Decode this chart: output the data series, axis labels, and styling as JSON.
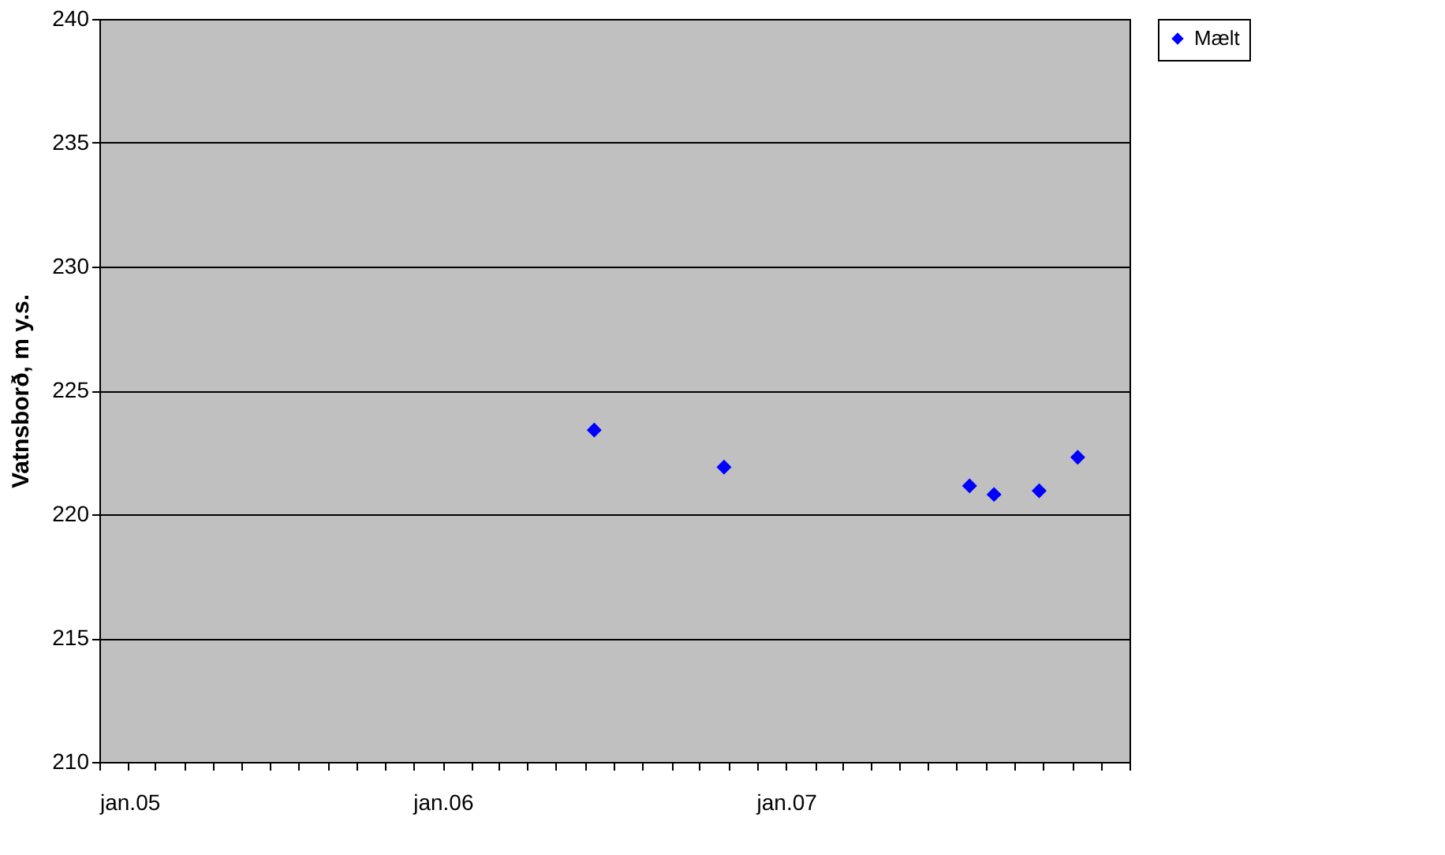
{
  "chart_data": {
    "type": "scatter",
    "ylabel": "Vatnsborð, m y.s.",
    "x": [
      "2006-06-11",
      "2006-10-27",
      "2007-07-15",
      "2007-08-10",
      "2007-09-27",
      "2007-11-07"
    ],
    "series": [
      {
        "name": "Mælt",
        "color": "#0000ff",
        "values": [
          223.4,
          221.9,
          221.15,
          220.8,
          220.95,
          222.3
        ]
      }
    ],
    "xlim": [
      "2005-01-01",
      "2008-01-01"
    ],
    "xticks": [
      {
        "value": "2005-01-01",
        "label": "jan.05"
      },
      {
        "value": "2005-02-01",
        "label": null
      },
      {
        "value": "2005-03-01",
        "label": null
      },
      {
        "value": "2005-04-01",
        "label": null
      },
      {
        "value": "2005-05-01",
        "label": null
      },
      {
        "value": "2005-06-01",
        "label": null
      },
      {
        "value": "2005-07-01",
        "label": null
      },
      {
        "value": "2005-08-01",
        "label": null
      },
      {
        "value": "2005-09-01",
        "label": null
      },
      {
        "value": "2005-10-01",
        "label": null
      },
      {
        "value": "2005-11-01",
        "label": null
      },
      {
        "value": "2005-12-01",
        "label": null
      },
      {
        "value": "2006-01-01",
        "label": "jan.06"
      },
      {
        "value": "2006-02-01",
        "label": null
      },
      {
        "value": "2006-03-01",
        "label": null
      },
      {
        "value": "2006-04-01",
        "label": null
      },
      {
        "value": "2006-05-01",
        "label": null
      },
      {
        "value": "2006-06-01",
        "label": null
      },
      {
        "value": "2006-07-01",
        "label": null
      },
      {
        "value": "2006-08-01",
        "label": null
      },
      {
        "value": "2006-09-01",
        "label": null
      },
      {
        "value": "2006-10-01",
        "label": null
      },
      {
        "value": "2006-11-01",
        "label": null
      },
      {
        "value": "2006-12-01",
        "label": null
      },
      {
        "value": "2007-01-01",
        "label": "jan.07"
      },
      {
        "value": "2007-02-01",
        "label": null
      },
      {
        "value": "2007-03-01",
        "label": null
      },
      {
        "value": "2007-04-01",
        "label": null
      },
      {
        "value": "2007-05-01",
        "label": null
      },
      {
        "value": "2007-06-01",
        "label": null
      },
      {
        "value": "2007-07-01",
        "label": null
      },
      {
        "value": "2007-08-01",
        "label": null
      },
      {
        "value": "2007-09-01",
        "label": null
      },
      {
        "value": "2007-10-01",
        "label": null
      },
      {
        "value": "2007-11-01",
        "label": null
      },
      {
        "value": "2007-12-01",
        "label": null
      },
      {
        "value": "2008-01-01",
        "label": null
      }
    ],
    "ylim": [
      210,
      240
    ],
    "yticks": [
      210,
      215,
      220,
      225,
      230,
      235,
      240
    ],
    "grid": "y",
    "legend": "right",
    "marker": "diamond"
  }
}
